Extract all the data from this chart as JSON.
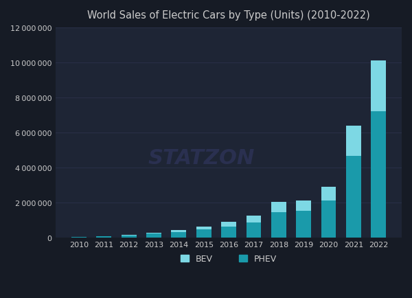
{
  "title": "World Sales of Electric Cars by Type (Units) (2010-2022)",
  "years": [
    2010,
    2011,
    2012,
    2013,
    2014,
    2015,
    2016,
    2017,
    2018,
    2019,
    2020,
    2021,
    2022
  ],
  "bev": [
    17000,
    45000,
    120000,
    200000,
    300000,
    450000,
    620000,
    850000,
    1450000,
    1530000,
    2100000,
    4650000,
    7200000
  ],
  "phev": [
    8000,
    8000,
    25000,
    55000,
    95000,
    170000,
    265000,
    380000,
    560000,
    580000,
    800000,
    1750000,
    2900000
  ],
  "bev_color": "#1a9aaa",
  "phev_color": "#7dd8e4",
  "fig_background_color": "#161b25",
  "ax_background_color": "#1e2535",
  "text_color": "#cccccc",
  "grid_color": "#2a3048",
  "watermark": "STATZON",
  "watermark_color": "#2a3050",
  "ylim": [
    0,
    12000000
  ],
  "ytick_step": 2000000,
  "legend_bev": "BEV",
  "legend_phev": "PHEV"
}
